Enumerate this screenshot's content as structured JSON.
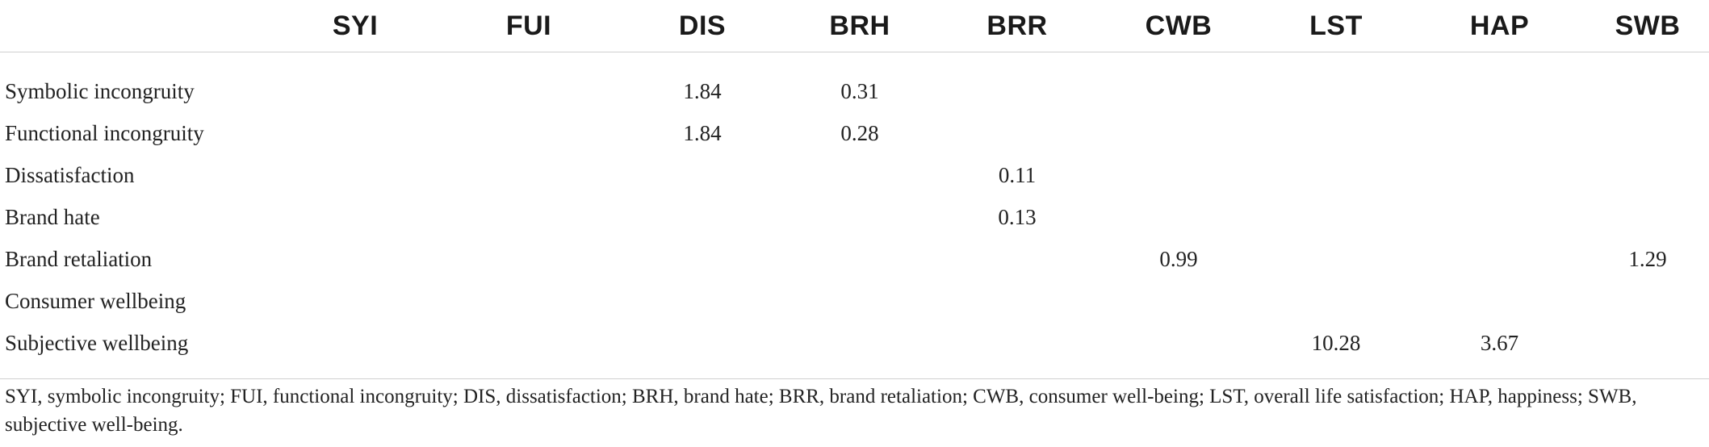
{
  "table": {
    "columns": [
      "",
      "SYI",
      "FUI",
      "DIS",
      "BRH",
      "BRR",
      "CWB",
      "LST",
      "HAP",
      "SWB"
    ],
    "rows": [
      {
        "label": "Symbolic incongruity",
        "cells": [
          "",
          "",
          "1.84",
          "0.31",
          "",
          "",
          "",
          "",
          ""
        ]
      },
      {
        "label": "Functional incongruity",
        "cells": [
          "",
          "",
          "1.84",
          "0.28",
          "",
          "",
          "",
          "",
          ""
        ]
      },
      {
        "label": "Dissatisfaction",
        "cells": [
          "",
          "",
          "",
          "",
          "0.11",
          "",
          "",
          "",
          ""
        ]
      },
      {
        "label": "Brand hate",
        "cells": [
          "",
          "",
          "",
          "",
          "0.13",
          "",
          "",
          "",
          ""
        ]
      },
      {
        "label": "Brand retaliation",
        "cells": [
          "",
          "",
          "",
          "",
          "",
          "0.99",
          "",
          "",
          "1.29"
        ]
      },
      {
        "label": "Consumer wellbeing",
        "cells": [
          "",
          "",
          "",
          "",
          "",
          "",
          "",
          "",
          ""
        ]
      },
      {
        "label": "Subjective wellbeing",
        "cells": [
          "",
          "",
          "",
          "",
          "",
          "",
          "10.28",
          "3.67",
          ""
        ]
      }
    ]
  },
  "footnote": "SYI, symbolic incongruity; FUI, functional incongruity; DIS, dissatisfaction; BRH, brand hate; BRR, brand retaliation; CWB, consumer well-being; LST, overall life satisfaction; HAP, happiness; SWB, subjective well-being."
}
